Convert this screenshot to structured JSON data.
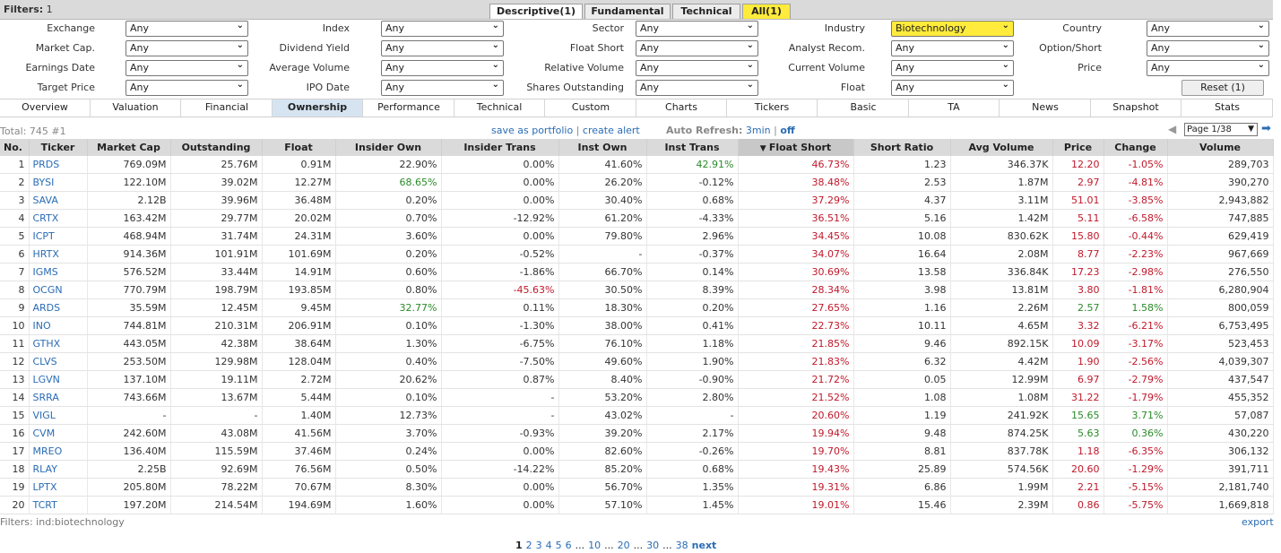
{
  "top": {
    "filters_label": "Filters:",
    "filters_count": "1",
    "tabs": [
      "Descriptive(1)",
      "Fundamental",
      "Technical",
      "All(1)"
    ]
  },
  "filters": {
    "rows": [
      [
        {
          "label": "Exchange",
          "value": "Any"
        },
        {
          "label": "Index",
          "value": "Any"
        },
        {
          "label": "Sector",
          "value": "Any"
        },
        {
          "label": "Industry",
          "value": "Biotechnology"
        },
        {
          "label": "Country",
          "value": "Any"
        }
      ],
      [
        {
          "label": "Market Cap.",
          "value": "Any"
        },
        {
          "label": "Dividend Yield",
          "value": "Any"
        },
        {
          "label": "Float Short",
          "value": "Any"
        },
        {
          "label": "Analyst Recom.",
          "value": "Any"
        },
        {
          "label": "Option/Short",
          "value": "Any"
        }
      ],
      [
        {
          "label": "Earnings Date",
          "value": "Any"
        },
        {
          "label": "Average Volume",
          "value": "Any"
        },
        {
          "label": "Relative Volume",
          "value": "Any"
        },
        {
          "label": "Current Volume",
          "value": "Any"
        },
        {
          "label": "Price",
          "value": "Any"
        }
      ],
      [
        {
          "label": "Target Price",
          "value": "Any"
        },
        {
          "label": "IPO Date",
          "value": "Any"
        },
        {
          "label": "Shares Outstanding",
          "value": "Any"
        },
        {
          "label": "Float",
          "value": "Any"
        }
      ]
    ],
    "reset_label": "Reset (1)",
    "highlight_color": "#ffeb3b"
  },
  "view_tabs": [
    "Overview",
    "Valuation",
    "Financial",
    "Ownership",
    "Performance",
    "Technical",
    "Custom",
    "Charts",
    "Tickers",
    "Basic",
    "TA",
    "News",
    "Snapshot",
    "Stats"
  ],
  "info": {
    "total": "Total: 745 #1",
    "save_portfolio": "save as portfolio",
    "separator": " | ",
    "create_alert": "create alert",
    "auto_refresh_label": "Auto Refresh:",
    "auto_refresh_value": "3min",
    "auto_refresh_off": "off",
    "page_select": "Page 1/38"
  },
  "table": {
    "columns": [
      "No.",
      "Ticker",
      "Market Cap",
      "Outstanding",
      "Float",
      "Insider Own",
      "Insider Trans",
      "Inst Own",
      "Inst Trans",
      "Float Short",
      "Short Ratio",
      "Avg Volume",
      "Price",
      "Change",
      "Volume"
    ],
    "sort_column": "Float Short",
    "sort_glyph": "▼",
    "rows": [
      [
        "1",
        "PRDS",
        "769.09M",
        "25.76M",
        "0.91M",
        "22.90%",
        "0.00%",
        "41.60%",
        "42.91%",
        "46.73%",
        "1.23",
        "346.37K",
        "12.20",
        "-1.05%",
        "289,703"
      ],
      [
        "2",
        "BYSI",
        "122.10M",
        "39.02M",
        "12.27M",
        "68.65%",
        "0.00%",
        "26.20%",
        "-0.12%",
        "38.48%",
        "2.53",
        "1.87M",
        "2.97",
        "-4.81%",
        "390,270"
      ],
      [
        "3",
        "SAVA",
        "2.12B",
        "39.96M",
        "36.48M",
        "0.20%",
        "0.00%",
        "30.40%",
        "0.68%",
        "37.29%",
        "4.37",
        "3.11M",
        "51.01",
        "-3.85%",
        "2,943,882"
      ],
      [
        "4",
        "CRTX",
        "163.42M",
        "29.77M",
        "20.02M",
        "0.70%",
        "-12.92%",
        "61.20%",
        "-4.33%",
        "36.51%",
        "5.16",
        "1.42M",
        "5.11",
        "-6.58%",
        "747,885"
      ],
      [
        "5",
        "ICPT",
        "468.94M",
        "31.74M",
        "24.31M",
        "3.60%",
        "0.00%",
        "79.80%",
        "2.96%",
        "34.45%",
        "10.08",
        "830.62K",
        "15.80",
        "-0.44%",
        "629,419"
      ],
      [
        "6",
        "HRTX",
        "914.36M",
        "101.91M",
        "101.69M",
        "0.20%",
        "-0.52%",
        "-",
        "-0.37%",
        "34.07%",
        "16.64",
        "2.08M",
        "8.77",
        "-2.23%",
        "967,669"
      ],
      [
        "7",
        "IGMS",
        "576.52M",
        "33.44M",
        "14.91M",
        "0.60%",
        "-1.86%",
        "66.70%",
        "0.14%",
        "30.69%",
        "13.58",
        "336.84K",
        "17.23",
        "-2.98%",
        "276,550"
      ],
      [
        "8",
        "OCGN",
        "770.79M",
        "198.79M",
        "193.85M",
        "0.80%",
        "-45.63%",
        "30.50%",
        "8.39%",
        "28.34%",
        "3.98",
        "13.81M",
        "3.80",
        "-1.81%",
        "6,280,904"
      ],
      [
        "9",
        "ARDS",
        "35.59M",
        "12.45M",
        "9.45M",
        "32.77%",
        "0.11%",
        "18.30%",
        "0.20%",
        "27.65%",
        "1.16",
        "2.26M",
        "2.57",
        "1.58%",
        "800,059"
      ],
      [
        "10",
        "INO",
        "744.81M",
        "210.31M",
        "206.91M",
        "0.10%",
        "-1.30%",
        "38.00%",
        "0.41%",
        "22.73%",
        "10.11",
        "4.65M",
        "3.32",
        "-6.21%",
        "6,753,495"
      ],
      [
        "11",
        "GTHX",
        "443.05M",
        "42.38M",
        "38.64M",
        "1.30%",
        "-6.75%",
        "76.10%",
        "1.18%",
        "21.85%",
        "9.46",
        "892.15K",
        "10.09",
        "-3.17%",
        "523,453"
      ],
      [
        "12",
        "CLVS",
        "253.50M",
        "129.98M",
        "128.04M",
        "0.40%",
        "-7.50%",
        "49.60%",
        "1.90%",
        "21.83%",
        "6.32",
        "4.42M",
        "1.90",
        "-2.56%",
        "4,039,307"
      ],
      [
        "13",
        "LGVN",
        "137.10M",
        "19.11M",
        "2.72M",
        "20.62%",
        "0.87%",
        "8.40%",
        "-0.90%",
        "21.72%",
        "0.05",
        "12.99M",
        "6.97",
        "-2.79%",
        "437,547"
      ],
      [
        "14",
        "SRRA",
        "743.66M",
        "13.67M",
        "5.44M",
        "0.10%",
        "-",
        "53.20%",
        "2.80%",
        "21.52%",
        "1.08",
        "1.08M",
        "31.22",
        "-1.79%",
        "455,352"
      ],
      [
        "15",
        "VIGL",
        "-",
        "-",
        "1.40M",
        "12.73%",
        "-",
        "43.02%",
        "-",
        "20.60%",
        "1.19",
        "241.92K",
        "15.65",
        "3.71%",
        "57,087"
      ],
      [
        "16",
        "CVM",
        "242.60M",
        "43.08M",
        "41.56M",
        "3.70%",
        "-0.93%",
        "39.20%",
        "2.17%",
        "19.94%",
        "9.48",
        "874.25K",
        "5.63",
        "0.36%",
        "430,220"
      ],
      [
        "17",
        "MREO",
        "136.40M",
        "115.59M",
        "37.46M",
        "0.24%",
        "0.00%",
        "82.60%",
        "-0.26%",
        "19.70%",
        "8.81",
        "837.78K",
        "1.18",
        "-6.35%",
        "306,132"
      ],
      [
        "18",
        "RLAY",
        "2.25B",
        "92.69M",
        "76.56M",
        "0.50%",
        "-14.22%",
        "85.20%",
        "0.68%",
        "19.43%",
        "25.89",
        "574.56K",
        "20.60",
        "-1.29%",
        "391,711"
      ],
      [
        "19",
        "LPTX",
        "205.80M",
        "78.22M",
        "70.67M",
        "8.30%",
        "0.00%",
        "56.70%",
        "1.35%",
        "19.31%",
        "6.86",
        "1.99M",
        "2.21",
        "-5.15%",
        "2,181,740"
      ],
      [
        "20",
        "TCRT",
        "197.20M",
        "214.54M",
        "194.69M",
        "1.60%",
        "0.00%",
        "57.10%",
        "1.45%",
        "19.01%",
        "15.46",
        "2.39M",
        "0.86",
        "-5.75%",
        "1,669,818"
      ]
    ],
    "colors": {
      "negative": "#c0182a",
      "positive": "#2a8a2a",
      "link": "#2a6cb5"
    }
  },
  "footer": {
    "filters_text": "Filters: ind:biotechnology",
    "export": "export",
    "pages": [
      "1",
      "2",
      "3",
      "4",
      "5",
      "6",
      "...",
      "10",
      "...",
      "20",
      "...",
      "30",
      "...",
      "38"
    ],
    "next": "next"
  }
}
